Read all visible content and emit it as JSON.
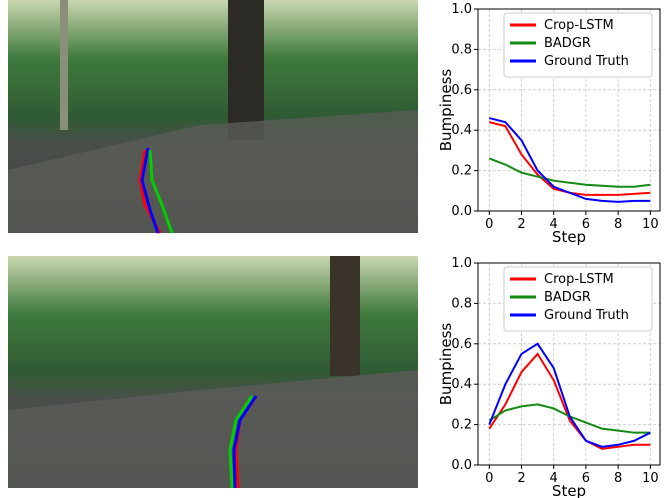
{
  "chart_data": [
    {
      "type": "line",
      "x_label": "Step",
      "y_label": "Bumpiness",
      "x": [
        0,
        1,
        2,
        3,
        4,
        5,
        6,
        7,
        8,
        9,
        10
      ],
      "xlim": [
        -0.7,
        10.6
      ],
      "xticks": [
        0,
        2,
        4,
        6,
        8,
        10
      ],
      "ylim": [
        0,
        1
      ],
      "yticks": [
        {
          "value": 0,
          "label": "0.0"
        },
        0.2,
        0.4,
        0.6,
        0.8,
        {
          "value": 1,
          "label": "1.0"
        }
      ],
      "grid": true,
      "legend": "upper right",
      "series": [
        {
          "name": "Crop-LSTM",
          "color": "#ff0000",
          "values": [
            0.44,
            0.42,
            0.28,
            0.18,
            0.11,
            0.09,
            0.08,
            0.08,
            0.08,
            0.085,
            0.09
          ]
        },
        {
          "name": "BADGR",
          "color": "#138a13",
          "values": [
            0.26,
            0.23,
            0.19,
            0.17,
            0.15,
            0.14,
            0.13,
            0.125,
            0.12,
            0.12,
            0.13
          ]
        },
        {
          "name": "Ground Truth",
          "color": "#0000ff",
          "values": [
            0.46,
            0.44,
            0.35,
            0.2,
            0.12,
            0.09,
            0.06,
            0.05,
            0.045,
            0.05,
            0.05
          ]
        }
      ]
    },
    {
      "type": "line",
      "x_label": "Step",
      "y_label": "Bumpiness",
      "x": [
        0,
        1,
        2,
        3,
        4,
        5,
        6,
        7,
        8,
        9,
        10
      ],
      "xlim": [
        -0.7,
        10.6
      ],
      "xticks": [
        0,
        2,
        4,
        6,
        8,
        10
      ],
      "ylim": [
        0,
        1
      ],
      "yticks": [
        {
          "value": 0,
          "label": "0.0"
        },
        0.2,
        0.4,
        0.6,
        0.8,
        {
          "value": 1,
          "label": "1.0"
        }
      ],
      "grid": true,
      "legend": "upper right",
      "series": [
        {
          "name": "Crop-LSTM",
          "color": "#ff0000",
          "values": [
            0.18,
            0.3,
            0.46,
            0.55,
            0.42,
            0.22,
            0.12,
            0.08,
            0.09,
            0.1,
            0.1
          ]
        },
        {
          "name": "BADGR",
          "color": "#138a13",
          "values": [
            0.22,
            0.27,
            0.29,
            0.3,
            0.28,
            0.24,
            0.21,
            0.18,
            0.17,
            0.16,
            0.16
          ]
        },
        {
          "name": "Ground Truth",
          "color": "#0000ff",
          "values": [
            0.2,
            0.4,
            0.55,
            0.6,
            0.48,
            0.24,
            0.12,
            0.09,
            0.1,
            0.12,
            0.16
          ]
        }
      ]
    }
  ]
}
